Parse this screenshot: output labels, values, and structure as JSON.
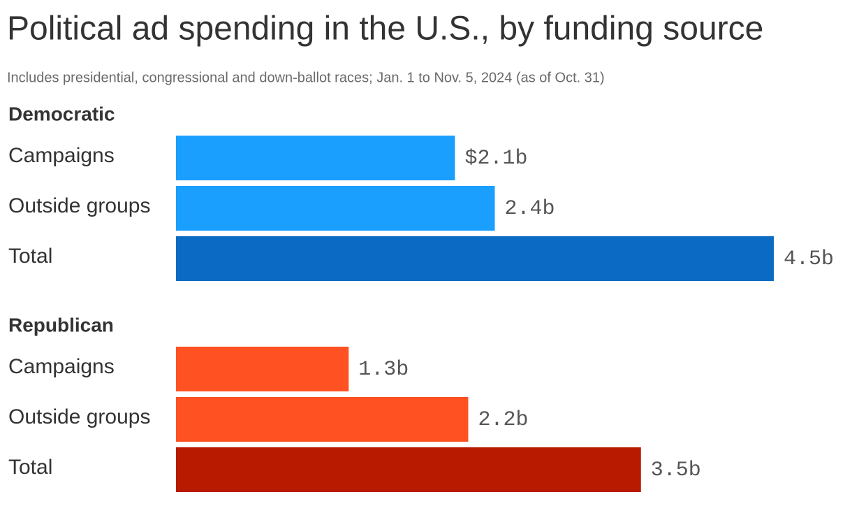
{
  "chart_data": {
    "type": "bar",
    "title": "Political ad spending in the U.S., by funding source",
    "subtitle": "Includes presidential, congressional and down-ballot races; Jan. 1 to Nov. 5, 2024 (as of Oct. 31)",
    "groups": [
      {
        "name": "Democratic",
        "categories": [
          "Campaigns",
          "Outside groups",
          "Total"
        ],
        "values": [
          2.1,
          2.4,
          4.5
        ],
        "value_labels": [
          "$2.1b",
          "2.4b",
          "4.5b"
        ],
        "colors": [
          "#1a9fff",
          "#1a9fff",
          "#0b6bc4"
        ]
      },
      {
        "name": "Republican",
        "categories": [
          "Campaigns",
          "Outside groups",
          "Total"
        ],
        "values": [
          1.3,
          2.2,
          3.5
        ],
        "value_labels": [
          "1.3b",
          "2.2b",
          "3.5b"
        ],
        "colors": [
          "#ff5121",
          "#ff5121",
          "#b81a00"
        ]
      }
    ]
  }
}
